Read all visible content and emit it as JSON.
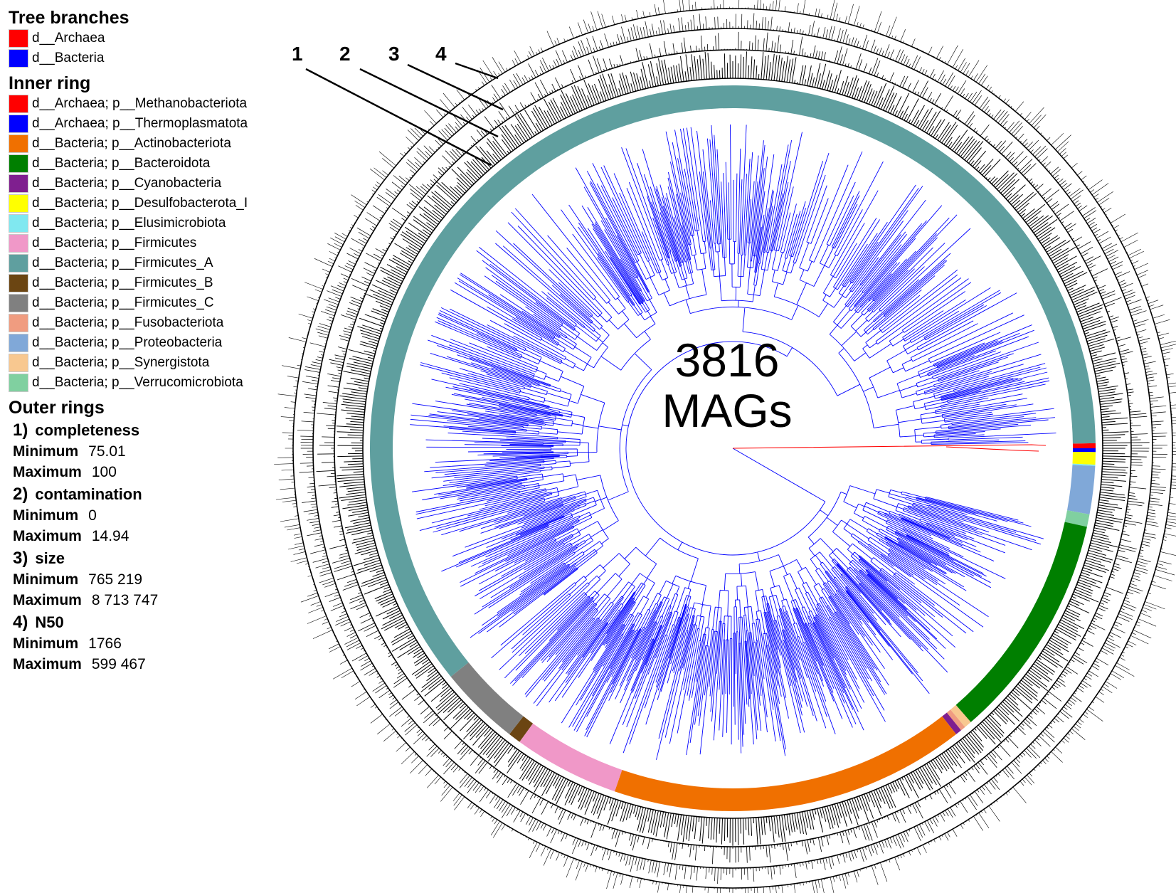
{
  "legend": {
    "tree_branches": {
      "title": "Tree branches",
      "items": [
        {
          "label": "d__Archaea",
          "color": "#ff0000"
        },
        {
          "label": "d__Bacteria",
          "color": "#0000ff"
        }
      ]
    },
    "inner_ring": {
      "title": "Inner ring",
      "items": [
        {
          "label": "d__Archaea; p__Methanobacteriota",
          "color": "#ff0000"
        },
        {
          "label": "d__Archaea; p__Thermoplasmatota",
          "color": "#0000ff"
        },
        {
          "label": "d__Bacteria; p__Actinobacteriota",
          "color": "#f07000"
        },
        {
          "label": "d__Bacteria; p__Bacteroidota",
          "color": "#007f00"
        },
        {
          "label": "d__Bacteria; p__Cyanobacteria",
          "color": "#7f1f8f"
        },
        {
          "label": "d__Bacteria; p__Desulfobacterota_I",
          "color": "#ffff00"
        },
        {
          "label": "d__Bacteria; p__Elusimicrobiota",
          "color": "#80e8f0"
        },
        {
          "label": "d__Bacteria; p__Firmicutes",
          "color": "#f098c8"
        },
        {
          "label": "d__Bacteria; p__Firmicutes_A",
          "color": "#5f9f9f"
        },
        {
          "label": "d__Bacteria; p__Firmicutes_B",
          "color": "#6b4512"
        },
        {
          "label": "d__Bacteria; p__Firmicutes_C",
          "color": "#808080"
        },
        {
          "label": "d__Bacteria; p__Fusobacteriota",
          "color": "#f09c80"
        },
        {
          "label": "d__Bacteria; p__Proteobacteria",
          "color": "#80a8d8"
        },
        {
          "label": "d__Bacteria; p__Synergistota",
          "color": "#f8c890"
        },
        {
          "label": "d__Bacteria; p__Verrucomicrobiota",
          "color": "#80d0a0"
        }
      ]
    },
    "outer_rings": {
      "title": "Outer rings",
      "min_label": "Minimum",
      "max_label": "Maximum",
      "items": [
        {
          "num": "1)",
          "name": "completeness",
          "min": "75.01",
          "max": "100"
        },
        {
          "num": "2)",
          "name": "contamination",
          "min": "0",
          "max": "14.94"
        },
        {
          "num": "3)",
          "name": "size",
          "min": "765 219",
          "max": "8 713 747"
        },
        {
          "num": "4)",
          "name": "N50",
          "min": "1766",
          "max": "599 467"
        }
      ]
    }
  },
  "center": {
    "count": "3816",
    "label": "MAGs"
  },
  "ring_callouts": [
    "1",
    "2",
    "3",
    "4"
  ],
  "inner_ring_segments": [
    {
      "phylum": "p__Methanobacteriota",
      "color": "#ff0000",
      "start_deg": -0.8,
      "end_deg": 0.0
    },
    {
      "phylum": "p__Thermoplasmatota",
      "color": "#0000ff",
      "start_deg": 0.0,
      "end_deg": 0.6
    },
    {
      "phylum": "p__Desulfobacterota_I",
      "color": "#ffff00",
      "start_deg": 0.6,
      "end_deg": 2.6
    },
    {
      "phylum": "p__Elusimicrobiota",
      "color": "#80e8f0",
      "start_deg": 2.6,
      "end_deg": 2.8
    },
    {
      "phylum": "p__Proteobacteria",
      "color": "#80a8d8",
      "start_deg": 2.8,
      "end_deg": 10.5
    },
    {
      "phylum": "p__Verrucomicrobiota",
      "color": "#80d0a0",
      "start_deg": 10.5,
      "end_deg": 12.5
    },
    {
      "phylum": "p__Bacteroidota",
      "color": "#007f00",
      "start_deg": 12.5,
      "end_deg": 49.0
    },
    {
      "phylum": "p__Synergistota",
      "color": "#f8c890",
      "start_deg": 49.0,
      "end_deg": 50.2
    },
    {
      "phylum": "p__Fusobacteriota",
      "color": "#f09c80",
      "start_deg": 50.2,
      "end_deg": 51.0
    },
    {
      "phylum": "p__Cyanobacteria",
      "color": "#7f1f8f",
      "start_deg": 51.0,
      "end_deg": 52.0
    },
    {
      "phylum": "p__Actinobacteriota",
      "color": "#f07000",
      "start_deg": 52.0,
      "end_deg": 109.0
    },
    {
      "phylum": "p__Firmicutes",
      "color": "#f098c8",
      "start_deg": 109.0,
      "end_deg": 126.0
    },
    {
      "phylum": "p__Firmicutes_B",
      "color": "#6b4512",
      "start_deg": 126.0,
      "end_deg": 128.0
    },
    {
      "phylum": "p__Firmicutes_C",
      "color": "#808080",
      "start_deg": 128.0,
      "end_deg": 141.0
    },
    {
      "phylum": "p__Firmicutes_A",
      "color": "#5f9f9f",
      "start_deg": 141.0,
      "end_deg": 359.2
    }
  ]
}
